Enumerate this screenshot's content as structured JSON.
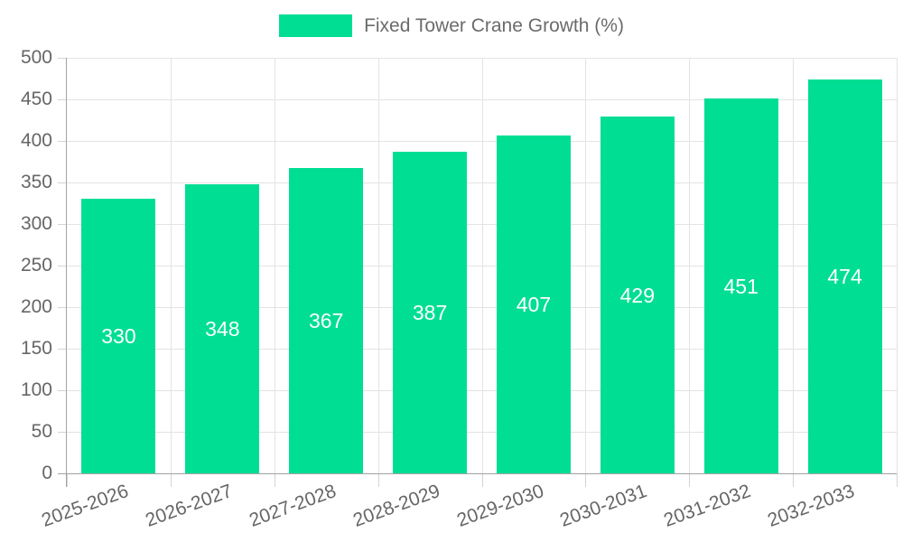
{
  "chart_data": {
    "type": "bar",
    "title": "",
    "legend": "Fixed Tower Crane Growth (%)",
    "legend_position": "top-center",
    "categories": [
      "2025-2026",
      "2026-2027",
      "2027-2028",
      "2028-2029",
      "2029-2030",
      "2030-2031",
      "2031-2032",
      "2032-2033"
    ],
    "values": [
      330,
      348,
      367,
      387,
      407,
      429,
      451,
      474
    ],
    "value_labels_shown": true,
    "xlabel": "",
    "ylabel": "",
    "ylim": [
      0,
      500
    ],
    "yticks": [
      0,
      50,
      100,
      150,
      200,
      250,
      300,
      350,
      400,
      450,
      500
    ],
    "grid": true,
    "x_label_rotation_deg": -20,
    "colors": {
      "bar": "#00de93",
      "value_label": "#ffffff",
      "grid_line": "#e3e3e3",
      "axis_line": "#a3a3a3",
      "tick_mark": "#d4d4d4",
      "tick_label": "#666666",
      "legend_text": "#6b6b6b",
      "background": "#ffffff"
    }
  }
}
